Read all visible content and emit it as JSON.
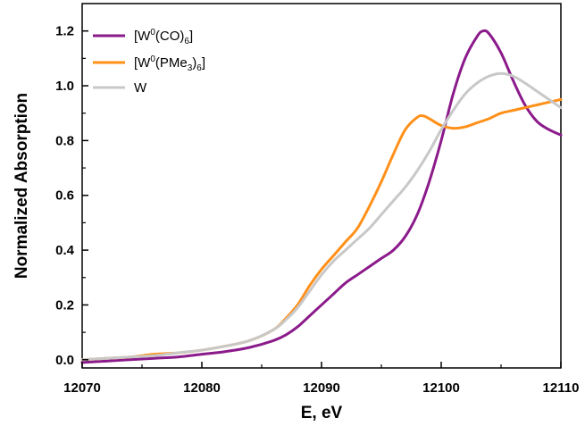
{
  "chart_data": {
    "type": "line",
    "xlabel": "E, eV",
    "ylabel": "Normalized Absorption",
    "xlim": [
      12070,
      12110
    ],
    "ylim": [
      -0.03,
      1.3
    ],
    "x_ticks": [
      12070,
      12080,
      12090,
      12100,
      12110
    ],
    "x_tick_labels": [
      "12070",
      "12080",
      "12090",
      "12100",
      "12110"
    ],
    "y_ticks": [
      0.0,
      0.2,
      0.4,
      0.6,
      0.8,
      1.0,
      1.2
    ],
    "y_tick_labels": [
      "0.0",
      "0.2",
      "0.4",
      "0.6",
      "0.8",
      "1.0",
      "1.2"
    ],
    "grid": false,
    "legend_position": "top-left",
    "series": [
      {
        "name": "[W0(CO)6]",
        "legend": {
          "pre": "[W",
          "sup": "0",
          "mid": "(CO)",
          "sub": "6",
          "post": "]"
        },
        "color": "#8B1A8B",
        "points": [
          [
            12070,
            -0.01
          ],
          [
            12072,
            -0.005
          ],
          [
            12074,
            0.0
          ],
          [
            12076,
            0.005
          ],
          [
            12078,
            0.01
          ],
          [
            12080,
            0.02
          ],
          [
            12082,
            0.03
          ],
          [
            12084,
            0.045
          ],
          [
            12086,
            0.07
          ],
          [
            12087,
            0.09
          ],
          [
            12088,
            0.12
          ],
          [
            12089,
            0.16
          ],
          [
            12090,
            0.2
          ],
          [
            12091,
            0.24
          ],
          [
            12092,
            0.28
          ],
          [
            12093,
            0.31
          ],
          [
            12094,
            0.34
          ],
          [
            12095,
            0.37
          ],
          [
            12096,
            0.4
          ],
          [
            12097,
            0.45
          ],
          [
            12098,
            0.53
          ],
          [
            12099,
            0.65
          ],
          [
            12100,
            0.8
          ],
          [
            12101,
            0.97
          ],
          [
            12102,
            1.1
          ],
          [
            12103,
            1.18
          ],
          [
            12103.5,
            1.2
          ],
          [
            12104,
            1.19
          ],
          [
            12105,
            1.12
          ],
          [
            12106,
            1.02
          ],
          [
            12107,
            0.93
          ],
          [
            12108,
            0.87
          ],
          [
            12109,
            0.84
          ],
          [
            12110,
            0.82
          ]
        ]
      },
      {
        "name": "[W0(PMe3)6]",
        "legend": {
          "pre": "[W",
          "sup": "0",
          "mid": "(PMe",
          "sub": "3",
          "mid2": ")",
          "sub2": "6",
          "post": "]"
        },
        "color": "#FF9019",
        "points": [
          [
            12070,
            0.0
          ],
          [
            12072,
            0.005
          ],
          [
            12074,
            0.01
          ],
          [
            12076,
            0.02
          ],
          [
            12078,
            0.025
          ],
          [
            12080,
            0.035
          ],
          [
            12082,
            0.05
          ],
          [
            12084,
            0.07
          ],
          [
            12086,
            0.11
          ],
          [
            12087,
            0.15
          ],
          [
            12088,
            0.2
          ],
          [
            12089,
            0.27
          ],
          [
            12090,
            0.33
          ],
          [
            12091,
            0.38
          ],
          [
            12092,
            0.43
          ],
          [
            12093,
            0.48
          ],
          [
            12094,
            0.56
          ],
          [
            12095,
            0.65
          ],
          [
            12096,
            0.75
          ],
          [
            12097,
            0.84
          ],
          [
            12098,
            0.885
          ],
          [
            12098.5,
            0.89
          ],
          [
            12099,
            0.88
          ],
          [
            12100,
            0.855
          ],
          [
            12101,
            0.845
          ],
          [
            12102,
            0.85
          ],
          [
            12103,
            0.865
          ],
          [
            12104,
            0.88
          ],
          [
            12105,
            0.9
          ],
          [
            12106,
            0.91
          ],
          [
            12107,
            0.92
          ],
          [
            12108,
            0.93
          ],
          [
            12109,
            0.94
          ],
          [
            12110,
            0.95
          ]
        ]
      },
      {
        "name": "W",
        "legend": {
          "pre": "W"
        },
        "color": "#C8C8C8",
        "points": [
          [
            12070,
            0.0
          ],
          [
            12072,
            0.005
          ],
          [
            12074,
            0.01
          ],
          [
            12076,
            0.015
          ],
          [
            12078,
            0.025
          ],
          [
            12080,
            0.035
          ],
          [
            12082,
            0.05
          ],
          [
            12084,
            0.07
          ],
          [
            12086,
            0.11
          ],
          [
            12087,
            0.145
          ],
          [
            12088,
            0.19
          ],
          [
            12089,
            0.25
          ],
          [
            12090,
            0.31
          ],
          [
            12091,
            0.36
          ],
          [
            12092,
            0.4
          ],
          [
            12093,
            0.44
          ],
          [
            12094,
            0.48
          ],
          [
            12095,
            0.53
          ],
          [
            12096,
            0.58
          ],
          [
            12097,
            0.63
          ],
          [
            12098,
            0.69
          ],
          [
            12099,
            0.76
          ],
          [
            12100,
            0.84
          ],
          [
            12101,
            0.91
          ],
          [
            12102,
            0.97
          ],
          [
            12103,
            1.01
          ],
          [
            12104,
            1.035
          ],
          [
            12105,
            1.045
          ],
          [
            12106,
            1.035
          ],
          [
            12107,
            1.01
          ],
          [
            12108,
            0.98
          ],
          [
            12109,
            0.95
          ],
          [
            12110,
            0.92
          ]
        ]
      }
    ]
  }
}
